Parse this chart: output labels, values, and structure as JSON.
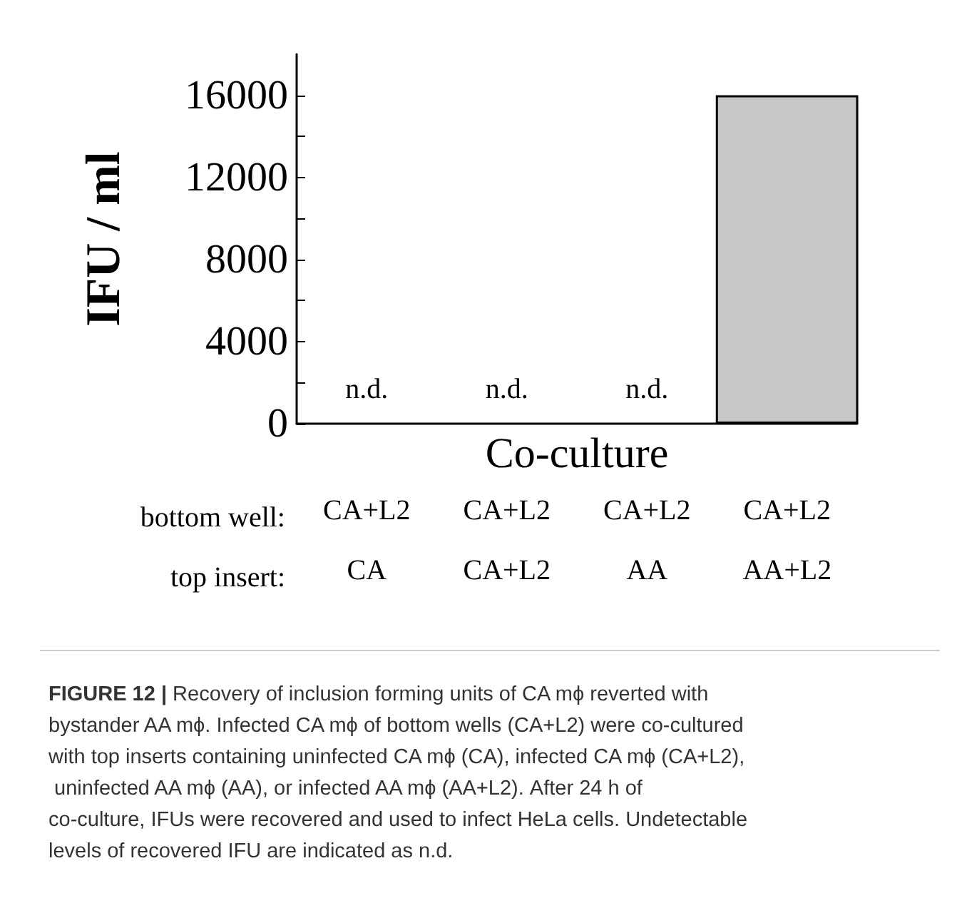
{
  "chart_data": {
    "type": "bar",
    "xlabel": "Co-culture",
    "ylabel": "IFU / ml",
    "categories": [
      "CA+L2\nCA",
      "CA+L2\nCA+L2",
      "CA+L2\nAA",
      "CA+L2\nAA+L2"
    ],
    "values": [
      null,
      null,
      null,
      16000
    ],
    "value_labels": [
      "n.d.",
      "n.d.",
      "n.d.",
      null
    ],
    "color": "#c8c8c8",
    "ylim": [
      0,
      18000
    ],
    "yticks": [
      0,
      {
        "value": 4000,
        "label": "4000"
      },
      {
        "value": 8000,
        "label": "8000"
      },
      {
        "value": 12000,
        "label": "12000"
      },
      {
        "value": 16000,
        "label": "16000"
      }
    ],
    "grid": false,
    "annotations": [
      "bottom well:",
      "top insert:",
      "FIGURE 12 |",
      "Recovery of inclusion forming units of CA mϕ reverted with bystander AA mϕ. Infected CA mϕ of bottom wells (CA+L2) were co-cultured with top inserts containing uninfected CA mϕ (CA), infected CA mϕ (CA+L2), uninfected AA mϕ (AA), or infected AA mϕ (AA+L2). After 24 h of co-culture, IFUs were recovered and used to infect HeLa cells. Undetectable levels of recovered IFU are indicated as n.d."
    ]
  }
}
